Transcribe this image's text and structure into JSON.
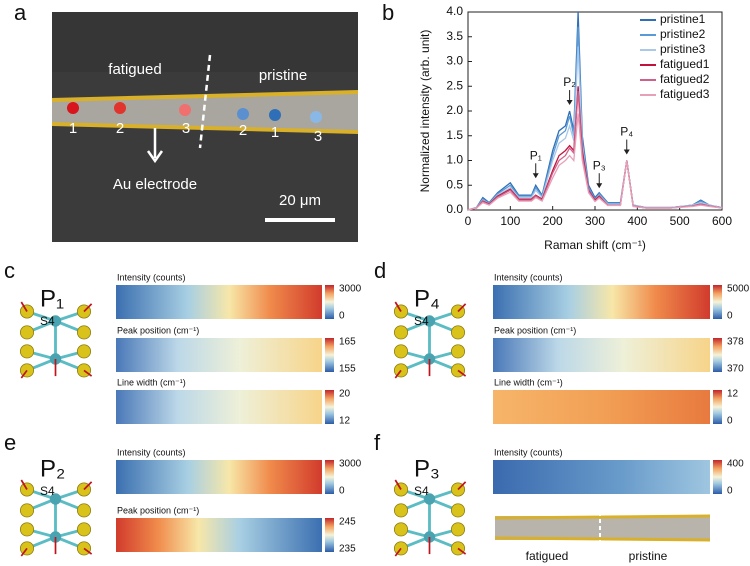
{
  "panel_labels": [
    "a",
    "b",
    "c",
    "d",
    "e",
    "f"
  ],
  "panel_a": {
    "region_labels": [
      "fatigued",
      "pristine"
    ],
    "point_labels": [
      "1",
      "2",
      "3",
      "2",
      "1",
      "3"
    ],
    "electrode_label": "Au electrode",
    "scale_bar": "20 μm"
  },
  "chart_data": {
    "type": "line",
    "xlabel": "Raman shift (cm⁻¹)",
    "ylabel": "Normalized intensity (arb. unit)",
    "x": [
      0,
      20,
      35,
      50,
      70,
      100,
      120,
      150,
      160,
      175,
      200,
      215,
      230,
      240,
      250,
      260,
      270,
      285,
      300,
      310,
      330,
      360,
      375,
      390,
      420,
      480,
      530,
      550,
      570,
      600
    ],
    "series": [
      {
        "name": "pristine1",
        "color": "#2f6fb8",
        "values": [
          0,
          0.05,
          0.25,
          0.15,
          0.35,
          0.55,
          0.3,
          0.3,
          0.5,
          0.3,
          1.2,
          1.6,
          1.7,
          2.0,
          1.6,
          4.0,
          1.5,
          0.5,
          0.25,
          0.35,
          0.15,
          0.15,
          1.0,
          0.1,
          0.05,
          0.05,
          0.1,
          0.2,
          0.1,
          0.05
        ]
      },
      {
        "name": "pristine2",
        "color": "#5b9bd5",
        "values": [
          0,
          0.05,
          0.22,
          0.14,
          0.33,
          0.5,
          0.28,
          0.28,
          0.45,
          0.28,
          1.1,
          1.5,
          1.6,
          1.9,
          1.5,
          3.7,
          1.4,
          0.45,
          0.22,
          0.33,
          0.14,
          0.14,
          1.0,
          0.1,
          0.05,
          0.05,
          0.1,
          0.18,
          0.1,
          0.05
        ]
      },
      {
        "name": "pristine3",
        "color": "#a9c8ea",
        "values": [
          0,
          0.05,
          0.2,
          0.12,
          0.3,
          0.45,
          0.25,
          0.25,
          0.4,
          0.25,
          1.0,
          1.35,
          1.45,
          1.7,
          1.4,
          3.3,
          1.3,
          0.4,
          0.2,
          0.3,
          0.12,
          0.12,
          1.0,
          0.1,
          0.05,
          0.05,
          0.1,
          0.15,
          0.1,
          0.05
        ]
      },
      {
        "name": "fatigued1",
        "color": "#c0143c",
        "values": [
          0,
          0.04,
          0.18,
          0.12,
          0.28,
          0.42,
          0.22,
          0.22,
          0.3,
          0.22,
          0.8,
          1.1,
          1.2,
          1.3,
          1.2,
          2.5,
          1.2,
          0.4,
          0.2,
          0.28,
          0.1,
          0.1,
          1.0,
          0.08,
          0.04,
          0.04,
          0.08,
          0.12,
          0.08,
          0.04
        ]
      },
      {
        "name": "fatigued2",
        "color": "#d0608a",
        "values": [
          0,
          0.04,
          0.17,
          0.11,
          0.26,
          0.4,
          0.2,
          0.2,
          0.28,
          0.2,
          0.75,
          1.0,
          1.1,
          1.25,
          1.15,
          2.4,
          1.1,
          0.38,
          0.18,
          0.26,
          0.1,
          0.1,
          1.0,
          0.08,
          0.04,
          0.04,
          0.08,
          0.12,
          0.08,
          0.04
        ]
      },
      {
        "name": "fatigued3",
        "color": "#e6a0b8",
        "values": [
          0,
          0.04,
          0.15,
          0.1,
          0.24,
          0.36,
          0.18,
          0.18,
          0.25,
          0.18,
          0.65,
          0.9,
          1.0,
          1.1,
          1.0,
          1.95,
          1.0,
          0.35,
          0.17,
          0.24,
          0.09,
          0.09,
          1.0,
          0.07,
          0.04,
          0.04,
          0.07,
          0.1,
          0.07,
          0.04
        ]
      }
    ],
    "annotations": [
      "P₁",
      "P₂",
      "P₃",
      "P₄"
    ],
    "xlim": [
      0,
      600
    ],
    "xticks": [
      0,
      100,
      200,
      300,
      400,
      500,
      600
    ],
    "ylim": [
      0,
      4
    ],
    "yticks": [
      {
        "value": 0,
        "label": "0.0"
      },
      0.5,
      {
        "value": 1,
        "label": "1.0"
      },
      1.5,
      {
        "value": 2,
        "label": "2.0"
      },
      2.5,
      {
        "value": 3,
        "label": "3.0"
      },
      3.5,
      {
        "value": 4,
        "label": "4.0"
      }
    ],
    "legend": "upper right"
  },
  "panel_c": {
    "mode": "P₁",
    "atom_label": "S4",
    "maps": [
      {
        "title": "Intensity (counts)",
        "colorbar_ticks": [
          3000,
          0
        ]
      },
      {
        "title": "Peak position (cm⁻¹)",
        "colorbar_ticks": [
          165,
          155
        ]
      },
      {
        "title": "Line width (cm⁻¹)",
        "colorbar_ticks": [
          20,
          12
        ]
      }
    ]
  },
  "panel_d": {
    "mode": "P₄",
    "atom_label": "S4",
    "maps": [
      {
        "title": "Intensity (counts)",
        "colorbar_ticks": [
          5000,
          0
        ]
      },
      {
        "title": "Peak position (cm⁻¹)",
        "colorbar_ticks": [
          378,
          370
        ]
      },
      {
        "title": "Line width (cm⁻¹)",
        "colorbar_ticks": [
          12,
          0
        ]
      }
    ]
  },
  "panel_e": {
    "mode": "P₂",
    "atom_label": "S4",
    "maps": [
      {
        "title": "Intensity (counts)",
        "colorbar_ticks": [
          3000,
          0
        ]
      },
      {
        "title": "Peak position (cm⁻¹)",
        "colorbar_ticks": [
          245,
          235
        ]
      }
    ]
  },
  "panel_f": {
    "mode": "P₃",
    "atom_label": "S4",
    "maps": [
      {
        "title": "Intensity (counts)",
        "colorbar_ticks": [
          400,
          0
        ]
      }
    ],
    "strip_labels": [
      "fatigued",
      "pristine"
    ]
  }
}
